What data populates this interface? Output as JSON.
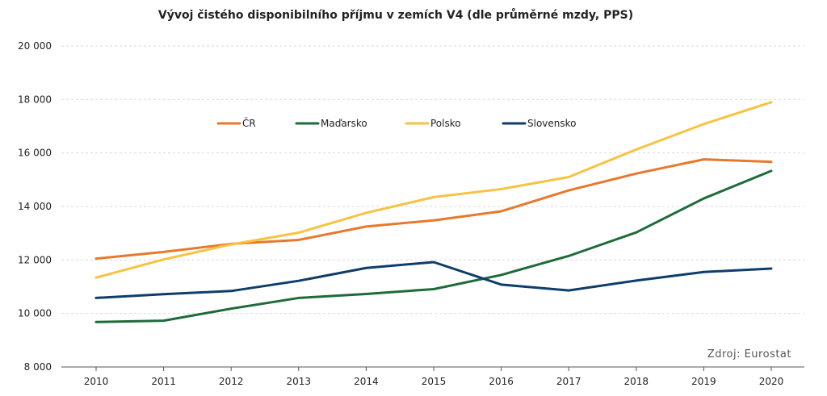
{
  "chart_data": {
    "type": "line",
    "title": "Vývoj čistého disponibilního příjmu v zemích V4 (dle průměrné mzdy, PPS)",
    "x": [
      "2010",
      "2011",
      "2012",
      "2013",
      "2014",
      "2015",
      "2016",
      "2017",
      "2018",
      "2019",
      "2020"
    ],
    "y_tick_labels": [
      "8 000",
      "10 000",
      "12 000",
      "14 000",
      "16 000",
      "18 000",
      "20 000"
    ],
    "y_ticks": [
      8000,
      10000,
      12000,
      14000,
      16000,
      18000,
      20000
    ],
    "ylim": [
      8000,
      20000
    ],
    "grid": true,
    "legend_position": "top-center",
    "source": "Zdroj: Eurostat",
    "series": [
      {
        "name": "ČR",
        "color": "#E8792B",
        "values": [
          12050,
          12300,
          12600,
          12750,
          13250,
          13480,
          13820,
          14600,
          15230,
          15760,
          15670
        ]
      },
      {
        "name": "Maďarsko",
        "color": "#1E6B3A",
        "values": [
          9680,
          9730,
          10180,
          10580,
          10730,
          10910,
          11440,
          12150,
          13030,
          14300,
          15330
        ]
      },
      {
        "name": "Polsko",
        "color": "#F6C342",
        "values": [
          11340,
          12020,
          12580,
          13020,
          13760,
          14350,
          14650,
          15100,
          16130,
          17080,
          17900
        ]
      },
      {
        "name": "Slovensko",
        "color": "#0F3D6B",
        "values": [
          10580,
          10720,
          10840,
          11220,
          11700,
          11920,
          11080,
          10860,
          11230,
          11550,
          11680
        ]
      }
    ]
  }
}
